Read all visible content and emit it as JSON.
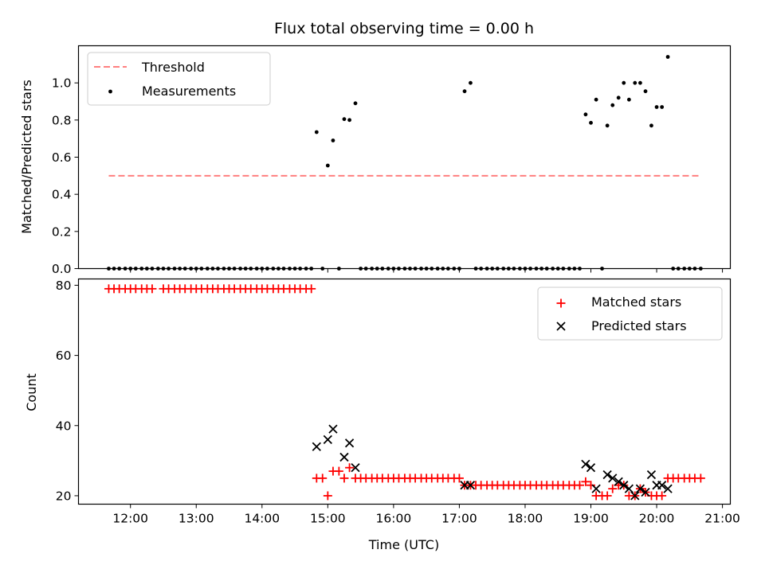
{
  "chart_data": [
    {
      "type": "scatter",
      "title": "Flux total observing time = 0.00 h",
      "xlabel": "",
      "ylabel": "Matched/Predicted stars",
      "xlim": [
        11.21,
        21.12
      ],
      "ylim": [
        0.0,
        1.2
      ],
      "y_ticks": [
        0.0,
        0.2,
        0.4,
        0.6,
        0.8,
        1.0
      ],
      "y_tick_labels": [
        "0.0",
        "0.2",
        "0.4",
        "0.6",
        "0.8",
        "1.0"
      ],
      "x_ticks": [
        12,
        13,
        14,
        15,
        16,
        17,
        18,
        19,
        20,
        21
      ],
      "legend": {
        "position": "upper-left",
        "entries": [
          {
            "label": "Threshold",
            "marker": "dashed-line",
            "color": "#ff7f7f"
          },
          {
            "label": "Measurements",
            "marker": "dot",
            "color": "#000000"
          }
        ]
      },
      "threshold": {
        "value": 0.5,
        "x_start": 11.67,
        "x_end": 20.67,
        "color": "#ff7f7f"
      },
      "series": [
        {
          "name": "Measurements",
          "color": "#000000",
          "points": [
            [
              11.67,
              0
            ],
            [
              11.75,
              0
            ],
            [
              11.83,
              0
            ],
            [
              11.92,
              0
            ],
            [
              12.0,
              0
            ],
            [
              12.08,
              0
            ],
            [
              12.17,
              0
            ],
            [
              12.25,
              0
            ],
            [
              12.33,
              0
            ],
            [
              12.42,
              0
            ],
            [
              12.5,
              0
            ],
            [
              12.58,
              0
            ],
            [
              12.67,
              0
            ],
            [
              12.75,
              0
            ],
            [
              12.83,
              0
            ],
            [
              12.92,
              0
            ],
            [
              13.0,
              0
            ],
            [
              13.08,
              0
            ],
            [
              13.17,
              0
            ],
            [
              13.25,
              0
            ],
            [
              13.33,
              0
            ],
            [
              13.42,
              0
            ],
            [
              13.5,
              0
            ],
            [
              13.58,
              0
            ],
            [
              13.67,
              0
            ],
            [
              13.75,
              0
            ],
            [
              13.83,
              0
            ],
            [
              13.92,
              0
            ],
            [
              14.0,
              0
            ],
            [
              14.08,
              0
            ],
            [
              14.17,
              0
            ],
            [
              14.25,
              0
            ],
            [
              14.33,
              0
            ],
            [
              14.42,
              0
            ],
            [
              14.5,
              0
            ],
            [
              14.58,
              0
            ],
            [
              14.67,
              0
            ],
            [
              14.75,
              0
            ],
            [
              14.83,
              0.735
            ],
            [
              14.92,
              0
            ],
            [
              15.0,
              0.555
            ],
            [
              15.08,
              0.69
            ],
            [
              15.17,
              0
            ],
            [
              15.25,
              0.805
            ],
            [
              15.33,
              0.8
            ],
            [
              15.42,
              0.89
            ],
            [
              15.5,
              0
            ],
            [
              15.58,
              0
            ],
            [
              15.67,
              0
            ],
            [
              15.75,
              0
            ],
            [
              15.83,
              0
            ],
            [
              15.92,
              0
            ],
            [
              16.0,
              0
            ],
            [
              16.08,
              0
            ],
            [
              16.17,
              0
            ],
            [
              16.25,
              0
            ],
            [
              16.33,
              0
            ],
            [
              16.42,
              0
            ],
            [
              16.5,
              0
            ],
            [
              16.58,
              0
            ],
            [
              16.67,
              0
            ],
            [
              16.75,
              0
            ],
            [
              16.83,
              0
            ],
            [
              16.92,
              0
            ],
            [
              17.0,
              0
            ],
            [
              17.08,
              0.955
            ],
            [
              17.17,
              1.0
            ],
            [
              17.25,
              0
            ],
            [
              17.33,
              0
            ],
            [
              17.42,
              0
            ],
            [
              17.5,
              0
            ],
            [
              17.58,
              0
            ],
            [
              17.67,
              0
            ],
            [
              17.75,
              0
            ],
            [
              17.83,
              0
            ],
            [
              17.92,
              0
            ],
            [
              18.0,
              0
            ],
            [
              18.08,
              0
            ],
            [
              18.17,
              0
            ],
            [
              18.25,
              0
            ],
            [
              18.33,
              0
            ],
            [
              18.42,
              0
            ],
            [
              18.5,
              0
            ],
            [
              18.58,
              0
            ],
            [
              18.67,
              0
            ],
            [
              18.75,
              0
            ],
            [
              18.83,
              0
            ],
            [
              18.92,
              0.83
            ],
            [
              19.0,
              0.785
            ],
            [
              19.08,
              0.91
            ],
            [
              19.17,
              0
            ],
            [
              19.25,
              0.77
            ],
            [
              19.33,
              0.88
            ],
            [
              19.42,
              0.92
            ],
            [
              19.5,
              1.0
            ],
            [
              19.58,
              0.91
            ],
            [
              19.67,
              1.0
            ],
            [
              19.75,
              1.0
            ],
            [
              19.83,
              0.955
            ],
            [
              19.92,
              0.77
            ],
            [
              20.0,
              0.87
            ],
            [
              20.08,
              0.87
            ],
            [
              20.17,
              1.14
            ],
            [
              20.25,
              0
            ],
            [
              20.33,
              0
            ],
            [
              20.42,
              0
            ],
            [
              20.5,
              0
            ],
            [
              20.58,
              0
            ],
            [
              20.67,
              0
            ]
          ]
        }
      ]
    },
    {
      "type": "scatter",
      "title": "",
      "xlabel": "Time (UTC)",
      "ylabel": "Count",
      "xlim": [
        11.21,
        21.12
      ],
      "ylim": [
        17.6,
        81.8
      ],
      "y_ticks": [
        20,
        40,
        60,
        80
      ],
      "y_tick_labels": [
        "20",
        "40",
        "60",
        "80"
      ],
      "x_ticks": [
        12,
        13,
        14,
        15,
        16,
        17,
        18,
        19,
        20,
        21
      ],
      "x_tick_labels": [
        "12:00",
        "13:00",
        "14:00",
        "15:00",
        "16:00",
        "17:00",
        "18:00",
        "19:00",
        "20:00",
        "21:00"
      ],
      "legend": {
        "position": "upper-right",
        "entries": [
          {
            "label": "Matched stars",
            "marker": "plus",
            "color": "#ff0000"
          },
          {
            "label": "Predicted stars",
            "marker": "x",
            "color": "#000000"
          }
        ]
      },
      "series": [
        {
          "name": "Matched stars",
          "marker": "plus",
          "color": "#ff0000",
          "points": [
            [
              11.67,
              79
            ],
            [
              11.75,
              79
            ],
            [
              11.83,
              79
            ],
            [
              11.92,
              79
            ],
            [
              12.0,
              79
            ],
            [
              12.08,
              79
            ],
            [
              12.17,
              79
            ],
            [
              12.25,
              79
            ],
            [
              12.33,
              79
            ],
            [
              12.5,
              79
            ],
            [
              12.58,
              79
            ],
            [
              12.67,
              79
            ],
            [
              12.75,
              79
            ],
            [
              12.83,
              79
            ],
            [
              12.92,
              79
            ],
            [
              13.0,
              79
            ],
            [
              13.08,
              79
            ],
            [
              13.17,
              79
            ],
            [
              13.25,
              79
            ],
            [
              13.33,
              79
            ],
            [
              13.42,
              79
            ],
            [
              13.5,
              79
            ],
            [
              13.58,
              79
            ],
            [
              13.67,
              79
            ],
            [
              13.75,
              79
            ],
            [
              13.83,
              79
            ],
            [
              13.92,
              79
            ],
            [
              14.0,
              79
            ],
            [
              14.08,
              79
            ],
            [
              14.17,
              79
            ],
            [
              14.25,
              79
            ],
            [
              14.33,
              79
            ],
            [
              14.42,
              79
            ],
            [
              14.5,
              79
            ],
            [
              14.58,
              79
            ],
            [
              14.67,
              79
            ],
            [
              14.75,
              79
            ],
            [
              14.83,
              25
            ],
            [
              14.92,
              25
            ],
            [
              15.0,
              20
            ],
            [
              15.08,
              27
            ],
            [
              15.17,
              27
            ],
            [
              15.25,
              25
            ],
            [
              15.33,
              28
            ],
            [
              15.42,
              25
            ],
            [
              15.5,
              25
            ],
            [
              15.58,
              25
            ],
            [
              15.67,
              25
            ],
            [
              15.75,
              25
            ],
            [
              15.83,
              25
            ],
            [
              15.92,
              25
            ],
            [
              16.0,
              25
            ],
            [
              16.08,
              25
            ],
            [
              16.17,
              25
            ],
            [
              16.25,
              25
            ],
            [
              16.33,
              25
            ],
            [
              16.42,
              25
            ],
            [
              16.5,
              25
            ],
            [
              16.58,
              25
            ],
            [
              16.67,
              25
            ],
            [
              16.75,
              25
            ],
            [
              16.83,
              25
            ],
            [
              16.92,
              25
            ],
            [
              17.0,
              25
            ],
            [
              17.08,
              23
            ],
            [
              17.17,
              23
            ],
            [
              17.25,
              23
            ],
            [
              17.33,
              23
            ],
            [
              17.42,
              23
            ],
            [
              17.5,
              23
            ],
            [
              17.58,
              23
            ],
            [
              17.67,
              23
            ],
            [
              17.75,
              23
            ],
            [
              17.83,
              23
            ],
            [
              17.92,
              23
            ],
            [
              18.0,
              23
            ],
            [
              18.08,
              23
            ],
            [
              18.17,
              23
            ],
            [
              18.25,
              23
            ],
            [
              18.33,
              23
            ],
            [
              18.42,
              23
            ],
            [
              18.5,
              23
            ],
            [
              18.58,
              23
            ],
            [
              18.67,
              23
            ],
            [
              18.75,
              23
            ],
            [
              18.83,
              23
            ],
            [
              18.92,
              24
            ],
            [
              19.0,
              23
            ],
            [
              19.08,
              20
            ],
            [
              19.17,
              20
            ],
            [
              19.25,
              20
            ],
            [
              19.33,
              22
            ],
            [
              19.42,
              23
            ],
            [
              19.5,
              23
            ],
            [
              19.58,
              20
            ],
            [
              19.67,
              20
            ],
            [
              19.75,
              22
            ],
            [
              19.83,
              21
            ],
            [
              19.92,
              20
            ],
            [
              20.0,
              20
            ],
            [
              20.08,
              20
            ],
            [
              20.17,
              25
            ],
            [
              20.25,
              25
            ],
            [
              20.33,
              25
            ],
            [
              20.42,
              25
            ],
            [
              20.5,
              25
            ],
            [
              20.58,
              25
            ],
            [
              20.67,
              25
            ]
          ]
        },
        {
          "name": "Predicted stars",
          "marker": "x",
          "color": "#000000",
          "points": [
            [
              14.83,
              34
            ],
            [
              15.0,
              36
            ],
            [
              15.08,
              39
            ],
            [
              15.25,
              31
            ],
            [
              15.33,
              35
            ],
            [
              15.42,
              28
            ],
            [
              17.08,
              23
            ],
            [
              17.17,
              23
            ],
            [
              18.92,
              29
            ],
            [
              19.0,
              28
            ],
            [
              19.08,
              22
            ],
            [
              19.25,
              26
            ],
            [
              19.33,
              25
            ],
            [
              19.42,
              24
            ],
            [
              19.5,
              23
            ],
            [
              19.58,
              22
            ],
            [
              19.67,
              20
            ],
            [
              19.75,
              22
            ],
            [
              19.83,
              21
            ],
            [
              19.92,
              26
            ],
            [
              20.0,
              23
            ],
            [
              20.08,
              23
            ],
            [
              20.17,
              22
            ]
          ]
        }
      ]
    }
  ]
}
